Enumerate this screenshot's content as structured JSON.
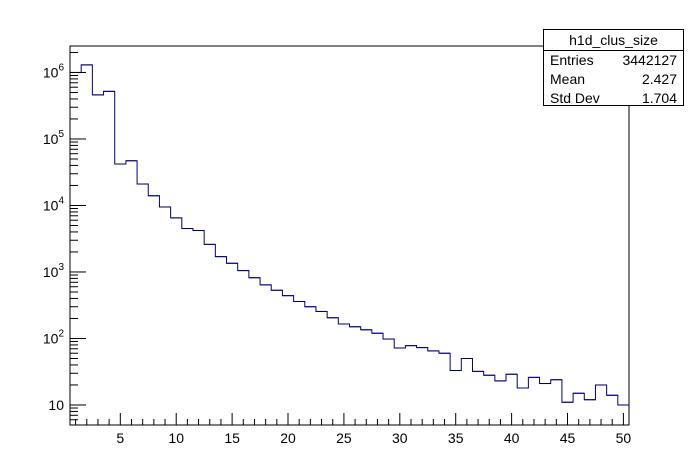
{
  "chart_data": {
    "type": "step",
    "title": "",
    "xlabel": "",
    "ylabel": "",
    "xlim": [
      0.5,
      50.5
    ],
    "ylim": [
      5,
      2500000
    ],
    "yscale": "log",
    "grid": false,
    "line_color": "#00007f",
    "bins": [
      1,
      2,
      3,
      4,
      5,
      6,
      7,
      8,
      9,
      10,
      11,
      12,
      13,
      14,
      15,
      16,
      17,
      18,
      19,
      20,
      21,
      22,
      23,
      24,
      25,
      26,
      27,
      28,
      29,
      30,
      31,
      32,
      33,
      34,
      35,
      36,
      37,
      38,
      39,
      40,
      41,
      42,
      43,
      44,
      45,
      46,
      47,
      48,
      49,
      50
    ],
    "values": [
      1000000,
      1300000,
      460000,
      520000,
      42000,
      47000,
      21000,
      14000,
      9500,
      6500,
      4500,
      4200,
      2600,
      1700,
      1350,
      1050,
      820,
      640,
      530,
      440,
      360,
      300,
      255,
      205,
      165,
      150,
      135,
      120,
      98,
      72,
      78,
      73,
      65,
      60,
      33,
      50,
      32,
      28,
      23,
      29,
      18,
      26,
      21,
      24,
      11,
      15,
      12,
      20,
      14,
      10
    ],
    "x_ticks": [
      "5",
      "10",
      "15",
      "20",
      "25",
      "30",
      "35",
      "40",
      "45",
      "50"
    ],
    "y_ticks": [
      {
        "base": "10",
        "exp": "6"
      },
      {
        "base": "10",
        "exp": "5"
      },
      {
        "base": "10",
        "exp": "4"
      },
      {
        "base": "10",
        "exp": "3"
      },
      {
        "base": "10",
        "exp": "2"
      },
      {
        "base": "10",
        "exp": ""
      }
    ],
    "stats": {
      "title": "h1d_clus_size",
      "rows": [
        {
          "label": "Entries",
          "value": "3442127"
        },
        {
          "label": "Mean",
          "value": "2.427"
        },
        {
          "label": "Std Dev",
          "value": "1.704"
        }
      ]
    }
  }
}
